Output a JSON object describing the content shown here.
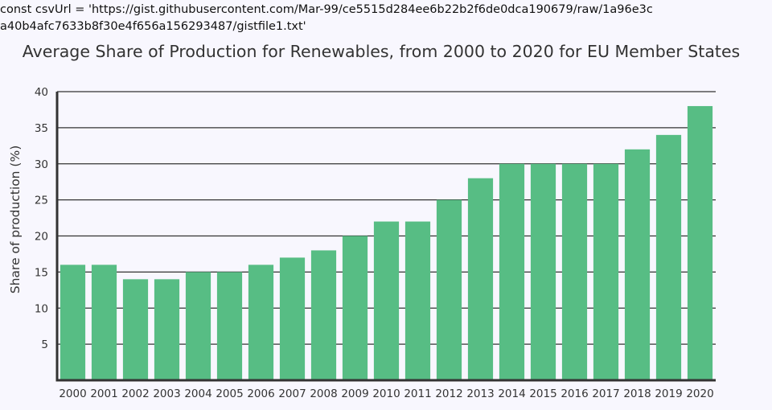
{
  "code_text": "const csvUrl = 'https://gist.githubusercontent.com/Mar-99/ce5515d284ee6b22b2f6de0dca190679/raw/1a96e3ca40b4afc7633b8f30e4f656a156293487/gistfile1.txt'",
  "chart_data": {
    "type": "bar",
    "title": "Average Share of Production for Renewables, from 2000 to 2020 for EU Member States",
    "xlabel": "",
    "ylabel": "Share of production (%)",
    "categories": [
      "2000",
      "2001",
      "2002",
      "2003",
      "2004",
      "2005",
      "2006",
      "2007",
      "2008",
      "2009",
      "2010",
      "2011",
      "2012",
      "2013",
      "2014",
      "2015",
      "2016",
      "2017",
      "2018",
      "2019",
      "2020"
    ],
    "values": [
      16,
      16,
      14,
      14,
      15,
      15,
      16,
      17,
      18,
      20,
      22,
      22,
      25,
      28,
      30,
      30,
      30,
      30,
      32,
      34,
      38
    ],
    "ylim": [
      0,
      40
    ],
    "yticks": [
      5,
      10,
      15,
      20,
      25,
      30,
      35,
      40
    ],
    "grid": true,
    "bar_color": "#57bd84",
    "gridline_color": "#333333"
  }
}
